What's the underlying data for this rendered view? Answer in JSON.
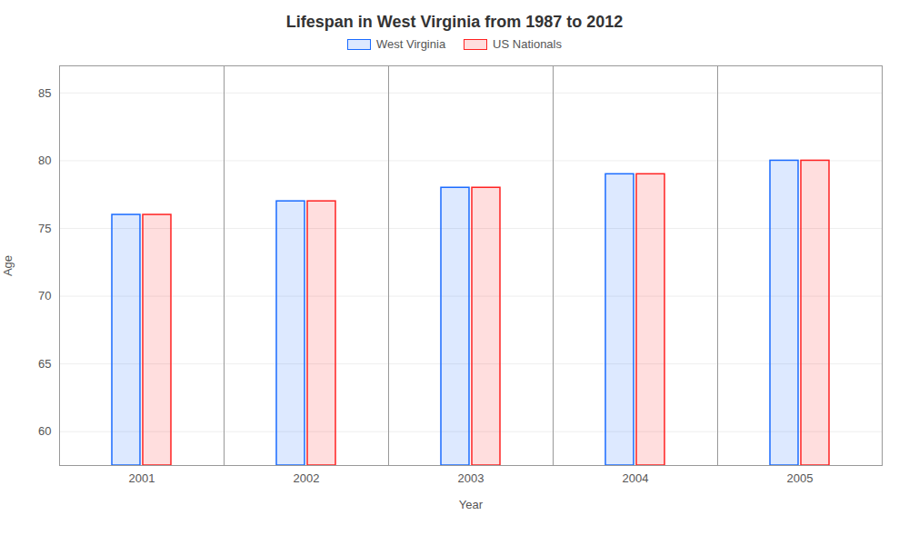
{
  "chart_data": {
    "type": "bar",
    "title": "Lifespan in West Virginia from 1987 to 2012",
    "xlabel": "Year",
    "ylabel": "Age",
    "categories": [
      "2001",
      "2002",
      "2003",
      "2004",
      "2005"
    ],
    "series": [
      {
        "name": "West Virginia",
        "color": "#1a6bff",
        "values": [
          76,
          77,
          78,
          79,
          80
        ]
      },
      {
        "name": "US Nationals",
        "color": "#ff2222",
        "values": [
          76,
          77,
          78,
          79,
          80
        ]
      }
    ],
    "ylim": [
      57.5,
      87
    ],
    "yticks": [
      60,
      65,
      70,
      75,
      80,
      85
    ],
    "grid": true,
    "legend": "top"
  }
}
